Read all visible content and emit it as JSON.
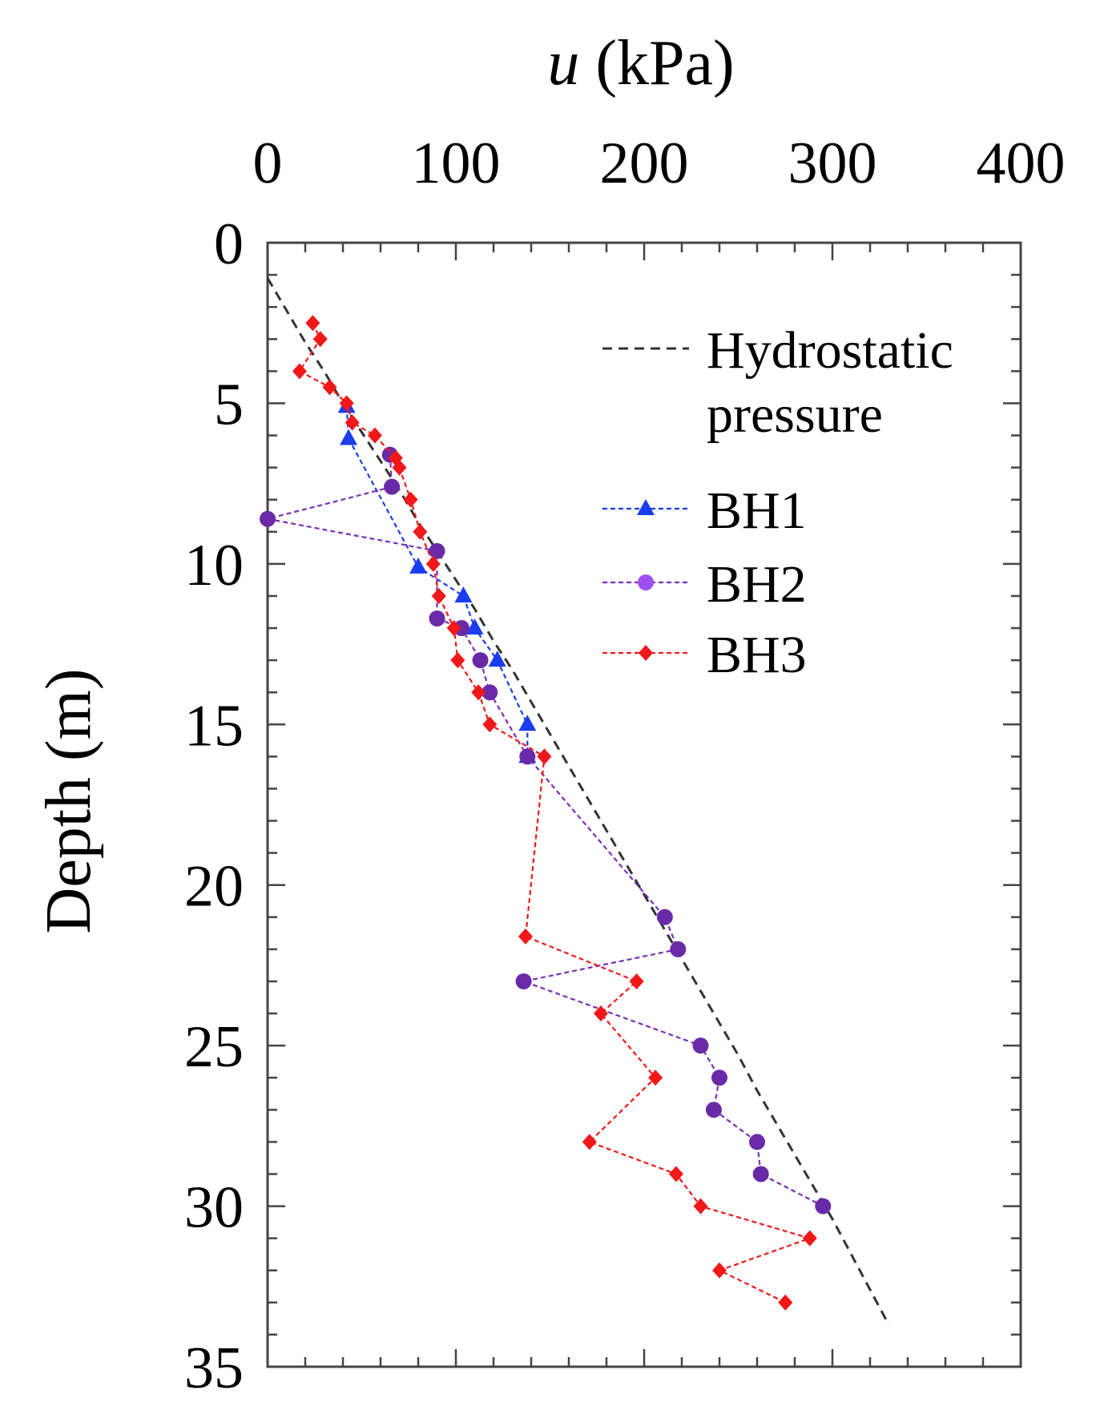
{
  "chart_data": {
    "type": "scatter",
    "title": "",
    "xlabel_var": "u",
    "xlabel_unit": " (kPa)",
    "ylabel": "Depth (m)",
    "xlim": [
      0,
      400
    ],
    "ylim": [
      0,
      35
    ],
    "y_inverted": true,
    "x_axis_position": "top",
    "xticks": [
      0,
      100,
      200,
      300,
      400
    ],
    "yticks": [
      0,
      5,
      10,
      15,
      20,
      25,
      30,
      35
    ],
    "grid": false,
    "legend_position": "top-right",
    "series": [
      {
        "name": "Hydrostatic",
        "name_line2": "pressure",
        "kind": "line",
        "color": "#333333",
        "marker": "none",
        "x": [
          0,
          10,
          20,
          30,
          40,
          50,
          60,
          70,
          80,
          90,
          100,
          110,
          120,
          130,
          140,
          150,
          160,
          170,
          180,
          190,
          200,
          210,
          220,
          230,
          240,
          250,
          260,
          270,
          280,
          290,
          300,
          310,
          320,
          330
        ],
        "y": [
          1.1,
          2.1,
          3.1,
          4.0,
          5.0,
          5.9,
          6.8,
          7.7,
          8.7,
          9.6,
          10.5,
          11.4,
          12.4,
          13.3,
          14.3,
          15.3,
          16.3,
          17.3,
          18.3,
          19.3,
          20.3,
          21.3,
          22.3,
          23.3,
          24.3,
          25.3,
          26.4,
          27.4,
          28.4,
          29.4,
          30.4,
          31.5,
          32.6,
          33.7
        ]
      },
      {
        "name": "BH1",
        "kind": "line+marker",
        "color": "#1a3df0",
        "marker": "triangle",
        "x": [
          42,
          43,
          80,
          104,
          110,
          122,
          138,
          138
        ],
        "y": [
          5.1,
          6.1,
          10.1,
          11.0,
          12.0,
          13.0,
          15.0,
          16.0
        ]
      },
      {
        "name": "BH2",
        "kind": "line+marker",
        "color": "#7a2fb8",
        "marker_color": "#6a2aa8",
        "marker": "circle",
        "x": [
          65,
          66,
          0,
          90,
          90,
          103,
          113,
          118,
          138,
          211,
          218,
          136,
          230,
          240,
          237,
          260,
          262,
          295
        ],
        "y": [
          6.6,
          7.6,
          8.6,
          9.6,
          11.7,
          12.0,
          13.0,
          14.0,
          16.0,
          21.0,
          22.0,
          23.0,
          25.0,
          26.0,
          27.0,
          28.0,
          29.0,
          30.0
        ]
      },
      {
        "name": "BH3",
        "kind": "line+marker",
        "color": "#f01818",
        "marker": "diamond",
        "x": [
          24,
          28,
          17,
          33,
          42,
          45,
          57,
          68,
          70,
          76,
          81,
          88,
          91,
          99,
          101,
          112,
          118,
          147,
          137,
          196,
          177,
          206,
          171,
          217,
          230,
          288,
          240,
          275
        ],
        "y": [
          2.5,
          3.0,
          4.0,
          4.5,
          5.0,
          5.6,
          6.0,
          6.7,
          7.0,
          8.0,
          9.0,
          10.0,
          11.0,
          12.0,
          13.0,
          14.0,
          15.0,
          16.0,
          21.6,
          23.0,
          24.0,
          26.0,
          28.0,
          29.0,
          30.0,
          31.0,
          32.0,
          33.0
        ]
      }
    ]
  }
}
